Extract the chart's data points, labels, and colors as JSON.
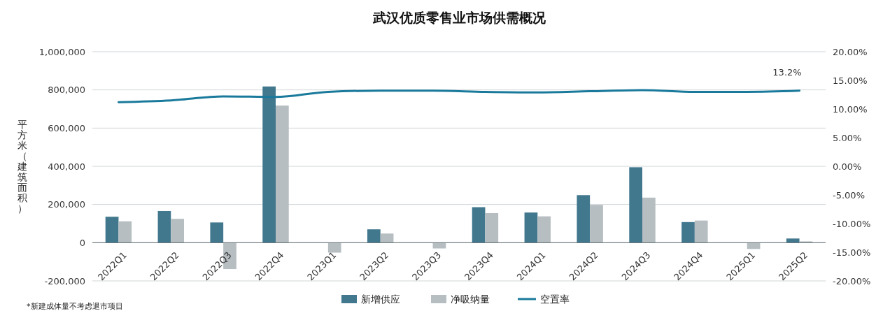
{
  "chart_data": {
    "type": "bar",
    "title": "武汉优质零售业市场供需概况",
    "ylabel": "平方米（建筑面积）",
    "categories": [
      "2022Q1",
      "2022Q2",
      "2022Q3",
      "2022Q4",
      "2023Q1",
      "2023Q2",
      "2023Q3",
      "2023Q4",
      "2024Q1",
      "2024Q2",
      "2024Q3",
      "2024Q4",
      "2025Q1",
      "2025Q2"
    ],
    "series": [
      {
        "name": "新增供应",
        "color": "#41788e",
        "values": [
          136000,
          166000,
          106000,
          818000,
          0,
          70000,
          0,
          186000,
          158000,
          249000,
          395000,
          108000,
          0,
          22000
        ]
      },
      {
        "name": "净吸纳量",
        "color": "#b6bec1",
        "values": [
          112000,
          125000,
          -138000,
          718000,
          -52000,
          48000,
          -30000,
          155000,
          138000,
          198000,
          236000,
          116000,
          -33000,
          7000
        ]
      },
      {
        "name": "空置率",
        "type": "line",
        "axis": "y2",
        "color": "#1a7a9c",
        "values": [
          11.2,
          11.5,
          12.2,
          12.1,
          13.0,
          13.2,
          13.2,
          13.0,
          12.9,
          13.1,
          13.3,
          13.0,
          13.0,
          13.2
        ]
      }
    ],
    "ylim": [
      -200000,
      1000000
    ],
    "yticks": [
      {
        "value": -200000,
        "label": "-200,000"
      },
      {
        "value": 0,
        "label": "0"
      },
      {
        "value": 200000,
        "label": "200,000"
      },
      {
        "value": 400000,
        "label": "400,000"
      },
      {
        "value": 600000,
        "label": "600,000"
      },
      {
        "value": 800000,
        "label": "800,000"
      },
      {
        "value": 1000000,
        "label": "1,000,000"
      }
    ],
    "y2lim": [
      -20,
      20
    ],
    "y2ticks": [
      {
        "value": -20,
        "label": "-20.00%"
      },
      {
        "value": -15,
        "label": "-15.00%"
      },
      {
        "value": -10,
        "label": "-10.00%"
      },
      {
        "value": -5,
        "label": "-5.00%"
      },
      {
        "value": 0,
        "label": "0.00%"
      },
      {
        "value": 5,
        "label": "5.00%"
      },
      {
        "value": 10,
        "label": "10.00%"
      },
      {
        "value": 15,
        "label": "15.00%"
      },
      {
        "value": 20,
        "label": "20.00%"
      }
    ],
    "grid": "y",
    "legend": "bottom",
    "line_style": "solid",
    "marker": "none",
    "annotations": [
      "13.2%",
      "*新建成体量不考虑退市项目"
    ]
  }
}
